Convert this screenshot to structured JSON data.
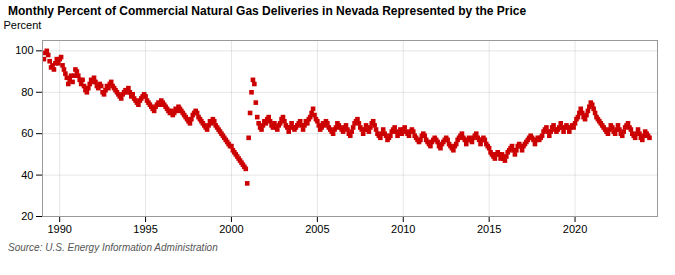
{
  "chart_data": {
    "type": "scatter",
    "title": "Monthly Percent of Commercial Natural Gas Deliveries in Nevada Represented by the Price",
    "ylabel": "Percent",
    "annotations": [
      "Source: U.S. Energy Information Administration"
    ],
    "color": "#cc0000",
    "marker": "square",
    "grid": true,
    "xlim": [
      1989.0,
      2024.8
    ],
    "ylim": [
      20,
      105
    ],
    "xticks": [
      1990,
      1995,
      2000,
      2005,
      2010,
      2015,
      2020
    ],
    "yticks": [
      20,
      40,
      60,
      80,
      100
    ],
    "x": [
      1989.083,
      1989.167,
      1989.25,
      1989.333,
      1989.417,
      1989.5,
      1989.583,
      1989.667,
      1989.75,
      1989.833,
      1989.917,
      1990.0,
      1990.083,
      1990.167,
      1990.25,
      1990.333,
      1990.417,
      1990.5,
      1990.583,
      1990.667,
      1990.75,
      1990.833,
      1990.917,
      1991.0,
      1991.083,
      1991.167,
      1991.25,
      1991.333,
      1991.417,
      1991.5,
      1991.583,
      1991.667,
      1991.75,
      1991.833,
      1991.917,
      1992.0,
      1992.083,
      1992.167,
      1992.25,
      1992.333,
      1992.417,
      1992.5,
      1992.583,
      1992.667,
      1992.75,
      1992.833,
      1992.917,
      1993.0,
      1993.083,
      1993.167,
      1993.25,
      1993.333,
      1993.417,
      1993.5,
      1993.583,
      1993.667,
      1993.75,
      1993.833,
      1993.917,
      1994.0,
      1994.083,
      1994.167,
      1994.25,
      1994.333,
      1994.417,
      1994.5,
      1994.583,
      1994.667,
      1994.75,
      1994.833,
      1994.917,
      1995.0,
      1995.083,
      1995.167,
      1995.25,
      1995.333,
      1995.417,
      1995.5,
      1995.583,
      1995.667,
      1995.75,
      1995.833,
      1995.917,
      1996.0,
      1996.083,
      1996.167,
      1996.25,
      1996.333,
      1996.417,
      1996.5,
      1996.583,
      1996.667,
      1996.75,
      1996.833,
      1996.917,
      1997.0,
      1997.083,
      1997.167,
      1997.25,
      1997.333,
      1997.417,
      1997.5,
      1997.583,
      1997.667,
      1997.75,
      1997.833,
      1997.917,
      1998.0,
      1998.083,
      1998.167,
      1998.25,
      1998.333,
      1998.417,
      1998.5,
      1998.583,
      1998.667,
      1998.75,
      1998.833,
      1998.917,
      1999.0,
      1999.083,
      1999.167,
      1999.25,
      1999.333,
      1999.417,
      1999.5,
      1999.583,
      1999.667,
      1999.75,
      1999.833,
      1999.917,
      2000.0,
      2000.083,
      2000.167,
      2000.25,
      2000.333,
      2000.417,
      2000.5,
      2000.583,
      2000.667,
      2000.75,
      2000.833,
      2000.917,
      2001.0,
      2001.083,
      2001.167,
      2001.25,
      2001.333,
      2001.417,
      2001.5,
      2001.583,
      2001.667,
      2001.75,
      2001.833,
      2001.917,
      2002.0,
      2002.083,
      2002.167,
      2002.25,
      2002.333,
      2002.417,
      2002.5,
      2002.583,
      2002.667,
      2002.75,
      2002.833,
      2002.917,
      2003.0,
      2003.083,
      2003.167,
      2003.25,
      2003.333,
      2003.417,
      2003.5,
      2003.583,
      2003.667,
      2003.75,
      2003.833,
      2003.917,
      2004.0,
      2004.083,
      2004.167,
      2004.25,
      2004.333,
      2004.417,
      2004.5,
      2004.583,
      2004.667,
      2004.75,
      2004.833,
      2004.917,
      2005.0,
      2005.083,
      2005.167,
      2005.25,
      2005.333,
      2005.417,
      2005.5,
      2005.583,
      2005.667,
      2005.75,
      2005.833,
      2005.917,
      2006.0,
      2006.083,
      2006.167,
      2006.25,
      2006.333,
      2006.417,
      2006.5,
      2006.583,
      2006.667,
      2006.75,
      2006.833,
      2006.917,
      2007.0,
      2007.083,
      2007.167,
      2007.25,
      2007.333,
      2007.417,
      2007.5,
      2007.583,
      2007.667,
      2007.75,
      2007.833,
      2007.917,
      2008.0,
      2008.083,
      2008.167,
      2008.25,
      2008.333,
      2008.417,
      2008.5,
      2008.583,
      2008.667,
      2008.75,
      2008.833,
      2008.917,
      2009.0,
      2009.083,
      2009.167,
      2009.25,
      2009.333,
      2009.417,
      2009.5,
      2009.583,
      2009.667,
      2009.75,
      2009.833,
      2009.917,
      2010.0,
      2010.083,
      2010.167,
      2010.25,
      2010.333,
      2010.417,
      2010.5,
      2010.583,
      2010.667,
      2010.75,
      2010.833,
      2010.917,
      2011.0,
      2011.083,
      2011.167,
      2011.25,
      2011.333,
      2011.417,
      2011.5,
      2011.583,
      2011.667,
      2011.75,
      2011.833,
      2011.917,
      2012.0,
      2012.083,
      2012.167,
      2012.25,
      2012.333,
      2012.417,
      2012.5,
      2012.583,
      2012.667,
      2012.75,
      2012.833,
      2012.917,
      2013.0,
      2013.083,
      2013.167,
      2013.25,
      2013.333,
      2013.417,
      2013.5,
      2013.583,
      2013.667,
      2013.75,
      2013.833,
      2013.917,
      2014.0,
      2014.083,
      2014.167,
      2014.25,
      2014.333,
      2014.417,
      2014.5,
      2014.583,
      2014.667,
      2014.75,
      2014.833,
      2014.917,
      2015.0,
      2015.083,
      2015.167,
      2015.25,
      2015.333,
      2015.417,
      2015.5,
      2015.583,
      2015.667,
      2015.75,
      2015.833,
      2015.917,
      2016.0,
      2016.083,
      2016.167,
      2016.25,
      2016.333,
      2016.417,
      2016.5,
      2016.583,
      2016.667,
      2016.75,
      2016.833,
      2016.917,
      2017.0,
      2017.083,
      2017.167,
      2017.25,
      2017.333,
      2017.417,
      2017.5,
      2017.583,
      2017.667,
      2017.75,
      2017.833,
      2017.917,
      2018.0,
      2018.083,
      2018.167,
      2018.25,
      2018.333,
      2018.417,
      2018.5,
      2018.583,
      2018.667,
      2018.75,
      2018.833,
      2018.917,
      2019.0,
      2019.083,
      2019.167,
      2019.25,
      2019.333,
      2019.417,
      2019.5,
      2019.583,
      2019.667,
      2019.75,
      2019.833,
      2019.917,
      2020.0,
      2020.083,
      2020.167,
      2020.25,
      2020.333,
      2020.417,
      2020.5,
      2020.583,
      2020.667,
      2020.75,
      2020.833,
      2020.917,
      2021.0,
      2021.083,
      2021.167,
      2021.25,
      2021.333,
      2021.417,
      2021.5,
      2021.583,
      2021.667,
      2021.75,
      2021.833,
      2021.917,
      2022.0,
      2022.083,
      2022.167,
      2022.25,
      2022.333,
      2022.417,
      2022.5,
      2022.583,
      2022.667,
      2022.75,
      2022.833,
      2022.917,
      2023.0,
      2023.083,
      2023.167,
      2023.25,
      2023.333,
      2023.417,
      2023.5,
      2023.583,
      2023.667,
      2023.75,
      2023.833,
      2023.917,
      2024.0,
      2024.083,
      2024.167,
      2024.25,
      2024.333
    ],
    "values": [
      96,
      99,
      100,
      98,
      95,
      92,
      93,
      91,
      94,
      96,
      94,
      96,
      97,
      93,
      91,
      89,
      87,
      84,
      86,
      88,
      85,
      88,
      91,
      90,
      88,
      86,
      84,
      86,
      83,
      81,
      80,
      82,
      84,
      86,
      85,
      87,
      85,
      83,
      82,
      84,
      83,
      80,
      79,
      81,
      83,
      82,
      84,
      85,
      83,
      82,
      81,
      80,
      79,
      78,
      77,
      79,
      80,
      81,
      80,
      82,
      80,
      78,
      79,
      77,
      76,
      75,
      74,
      76,
      77,
      78,
      79,
      78,
      76,
      75,
      74,
      73,
      72,
      71,
      73,
      74,
      75,
      74,
      76,
      75,
      74,
      73,
      72,
      71,
      70,
      71,
      69,
      70,
      72,
      71,
      73,
      72,
      71,
      70,
      69,
      68,
      67,
      66,
      65,
      67,
      69,
      70,
      71,
      70,
      68,
      67,
      66,
      65,
      64,
      63,
      62,
      64,
      66,
      65,
      67,
      66,
      64,
      63,
      62,
      61,
      60,
      59,
      58,
      57,
      56,
      55,
      54,
      54,
      52,
      51,
      50,
      49,
      48,
      47,
      46,
      45,
      44,
      43,
      36,
      58,
      70,
      80,
      86,
      84,
      75,
      68,
      65,
      63,
      62,
      64,
      66,
      65,
      67,
      68,
      66,
      64,
      63,
      65,
      63,
      62,
      64,
      65,
      67,
      68,
      66,
      64,
      63,
      61,
      63,
      65,
      63,
      62,
      63,
      64,
      65,
      66,
      64,
      62,
      64,
      66,
      65,
      67,
      68,
      70,
      72,
      69,
      67,
      66,
      64,
      62,
      63,
      65,
      64,
      66,
      65,
      63,
      62,
      61,
      60,
      62,
      63,
      65,
      64,
      63,
      62,
      61,
      63,
      64,
      62,
      60,
      59,
      61,
      63,
      65,
      66,
      67,
      65,
      63,
      62,
      60,
      62,
      64,
      62,
      61,
      63,
      65,
      66,
      64,
      62,
      60,
      59,
      58,
      60,
      62,
      60,
      59,
      57,
      58,
      59,
      61,
      62,
      63,
      61,
      59,
      60,
      62,
      60,
      62,
      63,
      61,
      60,
      59,
      61,
      62,
      61,
      59,
      58,
      57,
      56,
      57,
      59,
      60,
      59,
      57,
      56,
      55,
      54,
      56,
      57,
      58,
      57,
      56,
      54,
      53,
      55,
      56,
      57,
      58,
      57,
      55,
      54,
      53,
      52,
      54,
      55,
      57,
      58,
      59,
      60,
      58,
      57,
      55,
      57,
      58,
      57,
      56,
      58,
      59,
      60,
      58,
      57,
      55,
      57,
      58,
      57,
      55,
      54,
      53,
      51,
      50,
      49,
      48,
      50,
      51,
      50,
      48,
      50,
      48,
      47,
      49,
      51,
      52,
      53,
      54,
      52,
      50,
      52,
      54,
      55,
      54,
      52,
      54,
      55,
      56,
      57,
      58,
      59,
      58,
      57,
      55,
      57,
      58,
      57,
      58,
      59,
      61,
      62,
      63,
      61,
      59,
      61,
      63,
      64,
      62,
      61,
      62,
      63,
      65,
      63,
      61,
      63,
      64,
      63,
      61,
      63,
      64,
      63,
      65,
      67,
      68,
      70,
      72,
      70,
      68,
      67,
      69,
      71,
      73,
      75,
      74,
      72,
      70,
      68,
      67,
      66,
      65,
      64,
      63,
      62,
      61,
      60,
      62,
      64,
      63,
      61,
      60,
      62,
      64,
      62,
      60,
      59,
      61,
      63,
      64,
      65,
      63,
      62,
      60,
      59,
      58,
      60,
      62,
      60,
      58,
      57,
      59,
      61,
      60,
      59,
      58
    ]
  }
}
